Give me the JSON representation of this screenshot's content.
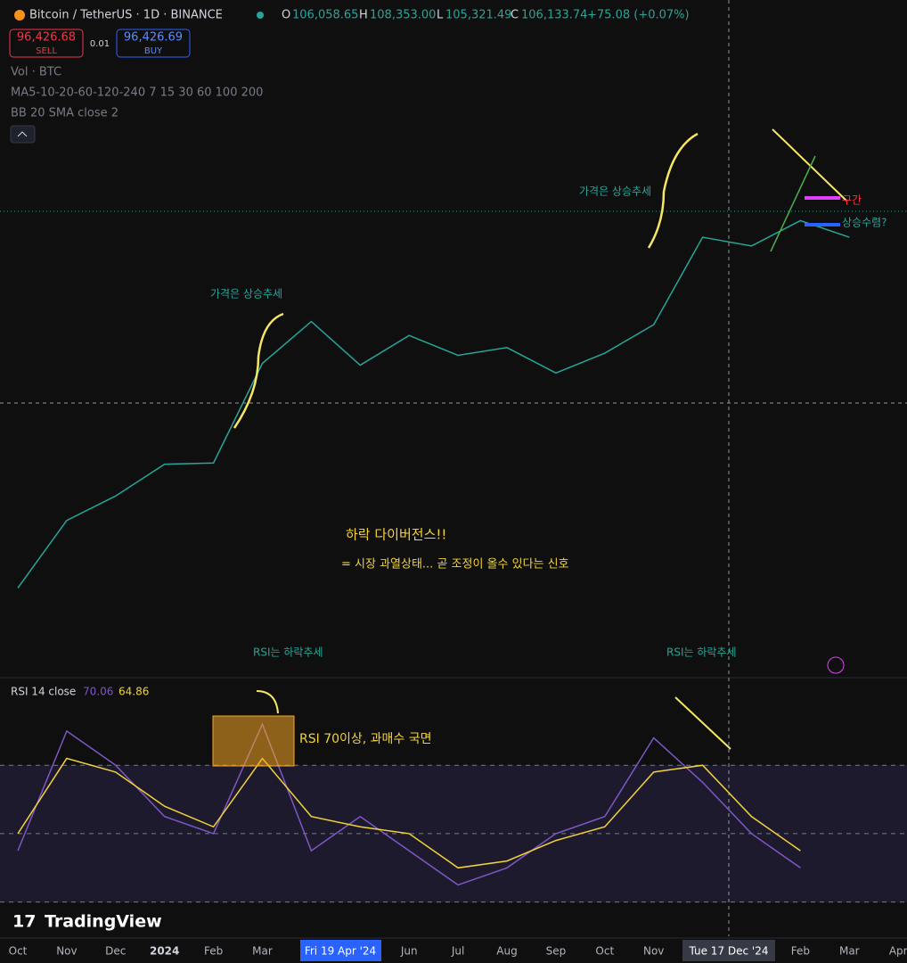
{
  "header": {
    "symbol": "Bitcoin / TetherUS · 1D · BINANCE",
    "open_label": "O",
    "open": "106,058.65",
    "high_label": "H",
    "high": "108,353.00",
    "low_label": "L",
    "low": "105,321.49",
    "close_label": "C",
    "close": "106,133.74",
    "change": "+75.08 (+0.07%)"
  },
  "trade": {
    "sell_price": "96,426.68",
    "sell": "SELL",
    "spread": "0.01",
    "buy_price": "96,426.69",
    "buy": "BUY"
  },
  "indicators": [
    "Vol · BTC",
    "MA5-10-20-60-120-240 7 15 30 60 100 200",
    "BB 20 SMA close 2"
  ],
  "annotations": {
    "price_up_1": "가격은 상승추세",
    "price_up_2": "가격은 상승추세",
    "divergence": "하락 다이버전스!!",
    "divergence_note": "= 시장 과열상태... 곧 조정이 올수 있다는 신호",
    "rsi_down_1": "RSI는 하락추세",
    "rsi_down_2": "RSI는 하락추세",
    "overbought": "RSI 70이상, 과매수 국면",
    "zone": "구간",
    "convergence": "상승수렴?"
  },
  "rsi_legend": {
    "name": "RSI 14 close",
    "rsi": "70.06",
    "ma": "64.86"
  },
  "crosshair": {
    "date_1": "Fri 19 Apr '24",
    "date_2": "Tue 17 Dec '24"
  },
  "brand": "TradingView",
  "chart_data": [
    {
      "type": "line",
      "log_scale": true,
      "ylim": [
        19500,
        228000
      ],
      "categories": [
        "Oct",
        "Nov",
        "Dec",
        "2024",
        "Feb",
        "Mar",
        null,
        null,
        "Jun",
        "Jul",
        "Aug",
        "Sep",
        "Oct",
        "Nov",
        null,
        null,
        "Feb",
        "Mar",
        "Apr"
      ],
      "series": [
        {
          "color": "#26a69a",
          "values": [
            27000,
            34500,
            37700,
            42300,
            42500,
            61000,
            71000,
            60600,
            67500,
            62800,
            64600,
            58900,
            63300,
            70200,
            96400,
            93400,
            102400,
            96400,
            null
          ]
        }
      ]
    },
    {
      "type": "line",
      "ylim": [
        20,
        93
      ],
      "levels": [
        70,
        50,
        30
      ],
      "series": [
        {
          "color": "#7e57c2",
          "values": [
            45,
            80,
            70,
            55,
            50,
            82,
            45,
            55,
            45,
            35,
            40,
            50,
            55,
            78,
            65,
            50,
            40,
            null,
            null
          ]
        },
        {
          "color": "#f2d33a",
          "values": [
            50,
            72,
            68,
            58,
            52,
            72,
            55,
            52,
            50,
            40,
            42,
            48,
            52,
            68,
            70,
            55,
            45,
            null,
            null
          ]
        }
      ]
    }
  ]
}
